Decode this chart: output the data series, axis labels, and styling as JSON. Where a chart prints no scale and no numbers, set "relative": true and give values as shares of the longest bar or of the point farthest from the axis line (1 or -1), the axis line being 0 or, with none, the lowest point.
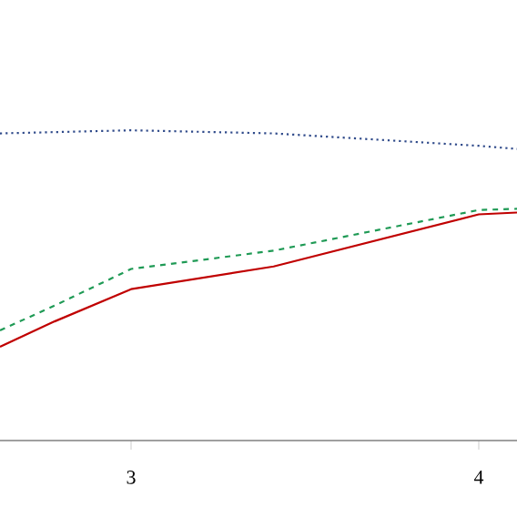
{
  "chart_data": {
    "type": "line",
    "relative": true,
    "xlim": [
      2.623,
      4.11
    ],
    "xticks": [
      3,
      4
    ],
    "tick_labels": "x",
    "grid": false,
    "marker": "none",
    "series": [
      {
        "color": "#2f4a8a",
        "line_style": "dotted",
        "x": [
          2.623,
          3,
          3.41,
          4,
          4.11
        ],
        "values": [
          0.99,
          1.0,
          0.99,
          0.95,
          0.94
        ]
      },
      {
        "color": "#1f9a55",
        "line_style": "dashed",
        "x": [
          2.623,
          2.78,
          3,
          3.41,
          4,
          4.11
        ],
        "values": [
          0.355,
          0.435,
          0.553,
          0.612,
          0.743,
          0.747
        ]
      },
      {
        "color": "#c00000",
        "line_style": "solid",
        "x": [
          2.623,
          2.78,
          3,
          3.41,
          4,
          4.11
        ],
        "values": [
          0.302,
          0.384,
          0.488,
          0.561,
          0.729,
          0.735
        ]
      }
    ]
  }
}
